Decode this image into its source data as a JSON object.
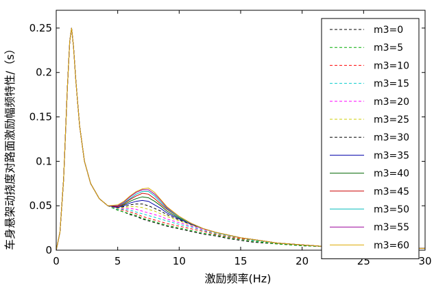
{
  "chart_data": {
    "type": "line",
    "title": "",
    "xlabel": "激励频率(Hz)",
    "ylabel": "车身悬架动挠度对路面激励幅频特性/（s）",
    "xlim": [
      0,
      30
    ],
    "ylim": [
      0,
      0.27
    ],
    "x_ticks": [
      "0",
      "5",
      "10",
      "15",
      "20",
      "25",
      "30"
    ],
    "y_ticks": [
      "0",
      "0.05",
      "0.1",
      "0.15",
      "0.2",
      "0.25"
    ],
    "grid": false,
    "legend_position": "right",
    "x": [
      0,
      0.3,
      0.6,
      0.9,
      1.1,
      1.25,
      1.4,
      1.6,
      1.9,
      2.3,
      2.8,
      3.5,
      4.2,
      5,
      5.5,
      6,
      6.5,
      7,
      7.5,
      8,
      8.5,
      9,
      10,
      11,
      12,
      13,
      14,
      15,
      16,
      18,
      20,
      22,
      25,
      28,
      30
    ],
    "series": [
      {
        "name": "m3=0",
        "color": "#000000",
        "dash": "dashed",
        "values": [
          0,
          0.02,
          0.08,
          0.18,
          0.235,
          0.25,
          0.23,
          0.19,
          0.14,
          0.1,
          0.075,
          0.058,
          0.05,
          0.045,
          0.043,
          0.04,
          0.038,
          0.035,
          0.033,
          0.031,
          0.029,
          0.027,
          0.024,
          0.021,
          0.018,
          0.016,
          0.013,
          0.011,
          0.009,
          0.007,
          0.005,
          0.004,
          0.003,
          0.002,
          0.002
        ]
      },
      {
        "name": "m3=5",
        "color": "#00aa00",
        "dash": "dashed",
        "values": [
          0,
          0.02,
          0.08,
          0.18,
          0.235,
          0.25,
          0.23,
          0.19,
          0.14,
          0.1,
          0.075,
          0.058,
          0.05,
          0.045,
          0.043,
          0.041,
          0.039,
          0.036,
          0.034,
          0.032,
          0.03,
          0.028,
          0.025,
          0.022,
          0.019,
          0.017,
          0.014,
          0.012,
          0.01,
          0.007,
          0.005,
          0.004,
          0.003,
          0.002,
          0.002
        ]
      },
      {
        "name": "m3=10",
        "color": "#ff0000",
        "dash": "dashed",
        "values": [
          0,
          0.02,
          0.08,
          0.18,
          0.235,
          0.25,
          0.23,
          0.19,
          0.14,
          0.1,
          0.075,
          0.058,
          0.05,
          0.046,
          0.045,
          0.043,
          0.041,
          0.038,
          0.036,
          0.034,
          0.032,
          0.03,
          0.027,
          0.024,
          0.021,
          0.018,
          0.015,
          0.013,
          0.011,
          0.008,
          0.006,
          0.004,
          0.003,
          0.002,
          0.002
        ]
      },
      {
        "name": "m3=15",
        "color": "#00cccc",
        "dash": "dashed",
        "values": [
          0,
          0.02,
          0.08,
          0.18,
          0.235,
          0.25,
          0.23,
          0.19,
          0.14,
          0.1,
          0.075,
          0.058,
          0.05,
          0.046,
          0.046,
          0.045,
          0.043,
          0.041,
          0.039,
          0.037,
          0.035,
          0.033,
          0.029,
          0.026,
          0.022,
          0.019,
          0.016,
          0.014,
          0.011,
          0.008,
          0.006,
          0.004,
          0.003,
          0.002,
          0.002
        ]
      },
      {
        "name": "m3=20",
        "color": "#ff00ff",
        "dash": "dashed",
        "values": [
          0,
          0.02,
          0.08,
          0.18,
          0.235,
          0.25,
          0.23,
          0.19,
          0.14,
          0.1,
          0.075,
          0.058,
          0.05,
          0.047,
          0.047,
          0.047,
          0.046,
          0.044,
          0.042,
          0.04,
          0.038,
          0.035,
          0.031,
          0.027,
          0.023,
          0.02,
          0.017,
          0.014,
          0.012,
          0.008,
          0.006,
          0.004,
          0.003,
          0.002,
          0.002
        ]
      },
      {
        "name": "m3=25",
        "color": "#cccc00",
        "dash": "dashed",
        "values": [
          0,
          0.02,
          0.08,
          0.18,
          0.235,
          0.25,
          0.23,
          0.19,
          0.14,
          0.1,
          0.075,
          0.058,
          0.05,
          0.047,
          0.048,
          0.049,
          0.049,
          0.048,
          0.046,
          0.044,
          0.041,
          0.038,
          0.033,
          0.028,
          0.024,
          0.02,
          0.017,
          0.014,
          0.012,
          0.008,
          0.006,
          0.004,
          0.003,
          0.002,
          0.002
        ]
      },
      {
        "name": "m3=30",
        "color": "#000000",
        "dash": "dashed",
        "values": [
          0,
          0.02,
          0.08,
          0.18,
          0.235,
          0.25,
          0.23,
          0.19,
          0.14,
          0.1,
          0.075,
          0.058,
          0.05,
          0.048,
          0.049,
          0.051,
          0.052,
          0.052,
          0.05,
          0.047,
          0.044,
          0.04,
          0.034,
          0.029,
          0.024,
          0.02,
          0.017,
          0.014,
          0.012,
          0.008,
          0.006,
          0.004,
          0.003,
          0.002,
          0.002
        ]
      },
      {
        "name": "m3=35",
        "color": "#0000aa",
        "dash": "solid",
        "values": [
          0,
          0.02,
          0.08,
          0.18,
          0.235,
          0.25,
          0.23,
          0.19,
          0.14,
          0.1,
          0.075,
          0.058,
          0.05,
          0.048,
          0.05,
          0.053,
          0.055,
          0.056,
          0.055,
          0.051,
          0.047,
          0.042,
          0.035,
          0.029,
          0.024,
          0.02,
          0.017,
          0.014,
          0.012,
          0.008,
          0.006,
          0.004,
          0.003,
          0.002,
          0.002
        ]
      },
      {
        "name": "m3=40",
        "color": "#006600",
        "dash": "solid",
        "values": [
          0,
          0.02,
          0.08,
          0.18,
          0.235,
          0.25,
          0.23,
          0.19,
          0.14,
          0.1,
          0.075,
          0.058,
          0.05,
          0.049,
          0.051,
          0.055,
          0.058,
          0.06,
          0.059,
          0.055,
          0.05,
          0.044,
          0.036,
          0.03,
          0.024,
          0.02,
          0.017,
          0.014,
          0.012,
          0.008,
          0.006,
          0.004,
          0.003,
          0.002,
          0.002
        ]
      },
      {
        "name": "m3=45",
        "color": "#cc0000",
        "dash": "solid",
        "values": [
          0,
          0.02,
          0.08,
          0.18,
          0.235,
          0.25,
          0.23,
          0.19,
          0.14,
          0.1,
          0.075,
          0.058,
          0.05,
          0.049,
          0.052,
          0.057,
          0.061,
          0.064,
          0.063,
          0.058,
          0.052,
          0.046,
          0.037,
          0.03,
          0.024,
          0.02,
          0.017,
          0.014,
          0.012,
          0.008,
          0.006,
          0.004,
          0.003,
          0.002,
          0.002
        ]
      },
      {
        "name": "m3=50",
        "color": "#00bbbb",
        "dash": "solid",
        "values": [
          0,
          0.02,
          0.08,
          0.18,
          0.235,
          0.25,
          0.23,
          0.19,
          0.14,
          0.1,
          0.075,
          0.058,
          0.05,
          0.05,
          0.053,
          0.058,
          0.063,
          0.066,
          0.066,
          0.061,
          0.054,
          0.047,
          0.037,
          0.03,
          0.024,
          0.02,
          0.017,
          0.014,
          0.012,
          0.008,
          0.006,
          0.004,
          0.003,
          0.002,
          0.002
        ]
      },
      {
        "name": "m3=55",
        "color": "#990099",
        "dash": "solid",
        "values": [
          0,
          0.02,
          0.08,
          0.18,
          0.235,
          0.25,
          0.23,
          0.19,
          0.14,
          0.1,
          0.075,
          0.058,
          0.05,
          0.05,
          0.054,
          0.06,
          0.065,
          0.068,
          0.068,
          0.063,
          0.056,
          0.048,
          0.038,
          0.03,
          0.024,
          0.02,
          0.017,
          0.014,
          0.012,
          0.008,
          0.006,
          0.004,
          0.003,
          0.002,
          0.002
        ]
      },
      {
        "name": "m3=60",
        "color": "#ddaa00",
        "dash": "solid",
        "values": [
          0,
          0.02,
          0.08,
          0.18,
          0.235,
          0.25,
          0.23,
          0.19,
          0.14,
          0.1,
          0.075,
          0.058,
          0.05,
          0.051,
          0.055,
          0.061,
          0.066,
          0.069,
          0.07,
          0.065,
          0.057,
          0.049,
          0.038,
          0.03,
          0.024,
          0.02,
          0.017,
          0.014,
          0.012,
          0.008,
          0.006,
          0.004,
          0.003,
          0.002,
          0.002
        ]
      }
    ]
  }
}
